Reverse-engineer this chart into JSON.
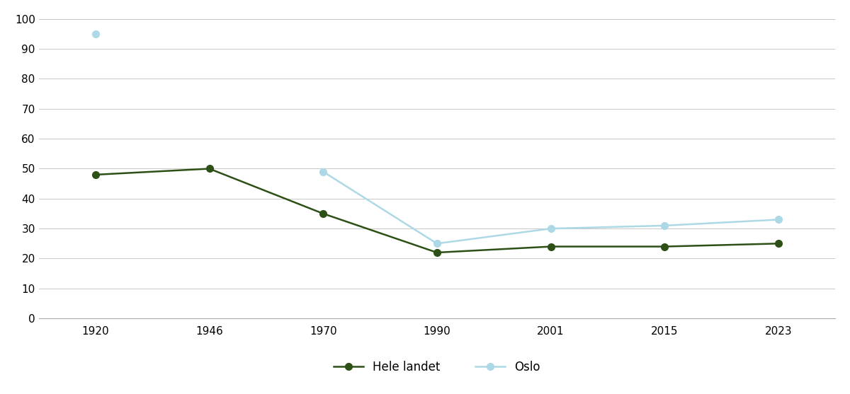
{
  "years": [
    "1920",
    "1946",
    "1970",
    "1990",
    "2001",
    "2015",
    "2023"
  ],
  "hele_landet": [
    48,
    50,
    35,
    22,
    24,
    24,
    25
  ],
  "oslo_full": [
    null,
    null,
    49,
    25,
    30,
    31,
    33
  ],
  "oslo_isolated": {
    "year_idx": 0,
    "value": 95
  },
  "hele_landet_color": "#2d5016",
  "oslo_color": "#add8e6",
  "background_color": "#ffffff",
  "ylim": [
    0,
    100
  ],
  "yticks": [
    0,
    10,
    20,
    30,
    40,
    50,
    60,
    70,
    80,
    90,
    100
  ],
  "legend_hele_landet": "Hele landet",
  "legend_oslo": "Oslo",
  "marker_size": 7,
  "line_width": 1.8,
  "grid_color": "#c8c8c8"
}
